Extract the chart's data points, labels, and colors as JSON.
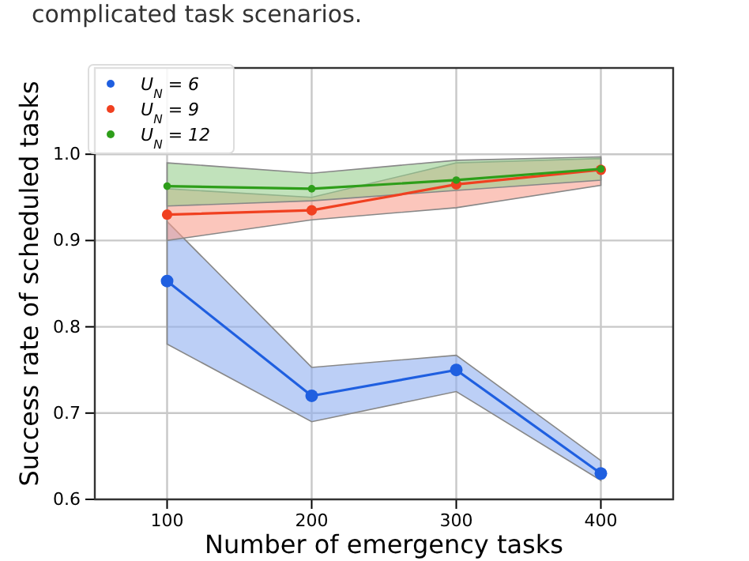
{
  "chart_data": {
    "type": "line",
    "xlabel": "Number of emergency tasks",
    "ylabel": "Success rate of scheduled tasks",
    "annotations": [
      "complicated task scenarios."
    ],
    "x": [
      100,
      200,
      300,
      400
    ],
    "series": [
      {
        "name": "U$_{N}$ = 6",
        "color": "#1f5fe0",
        "values": [
          0.853,
          0.72,
          0.75,
          0.63
        ],
        "lower": [
          0.78,
          0.69,
          0.725,
          0.622
        ],
        "upper": [
          0.922,
          0.753,
          0.767,
          0.645
        ]
      },
      {
        "name": "U$_{N}$ = 9",
        "color": "#f04020",
        "values": [
          0.93,
          0.935,
          0.965,
          0.982
        ],
        "lower": [
          0.9,
          0.924,
          0.938,
          0.964
        ],
        "upper": [
          0.96,
          0.95,
          0.99,
          0.995
        ]
      },
      {
        "name": "U$_{N}$ = 12",
        "color": "#2e9e1a",
        "values": [
          0.963,
          0.96,
          0.97,
          0.983
        ],
        "lower": [
          0.94,
          0.946,
          0.958,
          0.97
        ],
        "upper": [
          0.99,
          0.978,
          0.993,
          0.997
        ]
      }
    ],
    "xlim": [
      50,
      450
    ],
    "xticks": [
      100,
      200,
      300,
      400
    ],
    "ylim": [
      0.6,
      1.1
    ],
    "yticks": [
      {
        "value": 0.6,
        "label": "0.6"
      },
      {
        "value": 0.7,
        "label": "0.7"
      },
      {
        "value": 0.8,
        "label": "0.8"
      },
      {
        "value": 0.9,
        "label": "0.9"
      },
      {
        "value": 1.0,
        "label": "1.0"
      }
    ],
    "grid": true,
    "legend": "top left",
    "marker": "circle",
    "line_style": "solid"
  }
}
